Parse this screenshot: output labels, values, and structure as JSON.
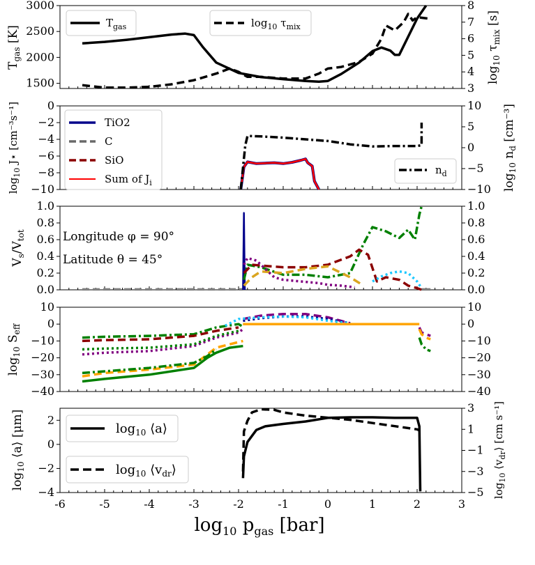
{
  "chart_data": [
    {
      "type": "line",
      "panel": "tgas-mixing",
      "ylabel_left": "Tgas [K]",
      "ylabel_right": "log10 τmix [s]",
      "ylim_left": [
        1400,
        3000
      ],
      "ylim_right": [
        3,
        8
      ],
      "yticks_left": [
        "1500",
        "2000",
        "2500",
        "3000"
      ],
      "yticks_right": [
        "3",
        "4",
        "5",
        "6",
        "7",
        "8"
      ],
      "legend": [
        {
          "label": "Tgas",
          "style": "solid",
          "placement": "top-left"
        },
        {
          "label": "log10 τmix",
          "style": "dashed",
          "placement": "top-center"
        }
      ],
      "series": [
        {
          "name": "Tgas",
          "axis": "left",
          "style": "solid",
          "color": "#000000",
          "x": [
            -5.5,
            -5.0,
            -4.5,
            -4.0,
            -3.5,
            -3.2,
            -3.0,
            -2.8,
            -2.5,
            -2.0,
            -1.5,
            -1.0,
            -0.5,
            -0.2,
            0.0,
            0.3,
            0.7,
            1.0,
            1.2,
            1.4,
            1.5,
            1.6,
            1.8,
            2.0,
            2.2
          ],
          "values": [
            2270,
            2300,
            2340,
            2390,
            2440,
            2460,
            2430,
            2200,
            1900,
            1700,
            1620,
            1580,
            1545,
            1530,
            1545,
            1680,
            1900,
            2120,
            2190,
            2130,
            2050,
            2050,
            2400,
            2750,
            3000
          ]
        },
        {
          "name": "log10 τmix",
          "axis": "right",
          "style": "dashed",
          "color": "#000000",
          "x": [
            -5.5,
            -5.0,
            -4.5,
            -4.0,
            -3.5,
            -3.0,
            -2.5,
            -2.2,
            -2.0,
            -1.8,
            -1.5,
            -1.0,
            -0.5,
            -0.2,
            0.0,
            0.3,
            0.7,
            1.0,
            1.2,
            1.3,
            1.5,
            1.7,
            1.8,
            1.9,
            2.0,
            2.3
          ],
          "values": [
            3.2,
            3.05,
            3.05,
            3.1,
            3.25,
            3.5,
            3.9,
            4.2,
            4.0,
            3.7,
            3.7,
            3.6,
            3.6,
            3.9,
            4.2,
            4.3,
            4.6,
            5.1,
            6.0,
            6.8,
            6.5,
            7.0,
            7.5,
            7.1,
            7.3,
            7.2
          ]
        }
      ]
    },
    {
      "type": "line",
      "panel": "nucleation",
      "ylabel_left": "log10 J⋆ [cm⁻³s⁻¹]",
      "ylabel_right": "log10 nd [cm⁻³]",
      "ylim_left": [
        -10,
        0
      ],
      "ylim_right": [
        -10,
        10
      ],
      "yticks_left": [
        "−10",
        "−8",
        "−6",
        "−4",
        "−2",
        "0"
      ],
      "yticks_right": [
        "−10",
        "−5",
        "0",
        "5",
        "10"
      ],
      "legend": [
        {
          "label": "TiO2",
          "color": "#00008b",
          "style": "solid"
        },
        {
          "label": "C",
          "color": "#696969",
          "style": "dashed"
        },
        {
          "label": "SiO",
          "color": "#8b0000",
          "style": "dashed"
        },
        {
          "label": "Sum of Ji",
          "color": "#ff0000",
          "style": "solid"
        },
        {
          "label": "nd",
          "color": "#000000",
          "style": "dashdot"
        }
      ],
      "series": [
        {
          "name": "TiO2",
          "axis": "left",
          "color": "#00008b",
          "x": [
            -1.95,
            -1.88,
            -1.8,
            -1.6,
            -1.4,
            -1.2,
            -1.0,
            -0.8,
            -0.6,
            -0.5,
            -0.45,
            -0.35,
            -0.3,
            -0.2
          ],
          "values": [
            -10,
            -7.3,
            -6.7,
            -6.9,
            -6.85,
            -6.8,
            -6.9,
            -6.75,
            -6.5,
            -6.35,
            -6.8,
            -7.2,
            -9,
            -10
          ]
        },
        {
          "name": "Sum of Ji",
          "axis": "left",
          "color": "#ff0000",
          "x": [
            -1.95,
            -1.88,
            -1.8,
            -1.6,
            -1.4,
            -1.2,
            -1.0,
            -0.8,
            -0.6,
            -0.5,
            -0.45,
            -0.35,
            -0.3,
            -0.2
          ],
          "values": [
            -10,
            -7.3,
            -6.7,
            -6.9,
            -6.85,
            -6.8,
            -6.9,
            -6.75,
            -6.5,
            -6.35,
            -6.8,
            -7.2,
            -9,
            -10
          ]
        },
        {
          "name": "nd",
          "axis": "right",
          "color": "#000000",
          "style": "dashdot",
          "x": [
            -1.95,
            -1.85,
            -1.8,
            -1.5,
            -1.0,
            -0.5,
            0.0,
            0.5,
            1.0,
            1.5,
            2.0,
            2.1,
            2.1
          ],
          "values": [
            -10,
            0.5,
            2.8,
            2.7,
            2.4,
            2.0,
            1.6,
            0.8,
            0.3,
            0.4,
            0.4,
            0.6,
            6
          ]
        }
      ]
    },
    {
      "type": "line",
      "panel": "volume-fractions",
      "ylabel_left": "Vs/Vtot",
      "ylim": [
        0,
        1.0
      ],
      "yticks": [
        "0.0",
        "0.2",
        "0.4",
        "0.6",
        "0.8",
        "1.0"
      ],
      "annotations": [
        "Longitude φ = 90°",
        "Latitude θ = 45°"
      ],
      "series": [
        {
          "name": "TiO2 spike",
          "color": "#00008b",
          "style": "solid",
          "x": [
            -1.9,
            -1.88,
            -1.86
          ],
          "values": [
            0,
            0.92,
            0
          ]
        },
        {
          "name": "green dashdot",
          "color": "#008000",
          "style": "dashdot",
          "x": [
            -1.88,
            -1.8,
            -1.5,
            -1.0,
            -0.5,
            0.0,
            0.5,
            0.8,
            1.0,
            1.3,
            1.6,
            1.8,
            1.95,
            2.05,
            2.1
          ],
          "values": [
            0.12,
            0.3,
            0.27,
            0.18,
            0.18,
            0.15,
            0.2,
            0.55,
            0.75,
            0.7,
            0.62,
            0.72,
            0.6,
            0.9,
            1.0
          ]
        },
        {
          "name": "darkred dashed",
          "color": "#8b0000",
          "style": "dashed",
          "x": [
            -1.88,
            -1.7,
            -1.5,
            -1.0,
            -0.5,
            0.0,
            0.5,
            0.7,
            0.9,
            1.1,
            1.3,
            1.6,
            1.8,
            2.0,
            2.1
          ],
          "values": [
            0.2,
            0.3,
            0.29,
            0.27,
            0.27,
            0.3,
            0.4,
            0.48,
            0.42,
            0.1,
            0.15,
            0.12,
            0.05,
            0.02,
            0.0
          ]
        },
        {
          "name": "orange dashed",
          "color": "#daa520",
          "style": "dashed",
          "x": [
            -1.88,
            -1.7,
            -1.5,
            -1.0,
            -0.5,
            0.0,
            0.5,
            0.8
          ],
          "values": [
            0.05,
            0.15,
            0.22,
            0.2,
            0.25,
            0.28,
            0.15,
            0.05
          ]
        },
        {
          "name": "purple dotted",
          "color": "#800080",
          "style": "dotted",
          "x": [
            -1.88,
            -1.8,
            -1.6,
            -1.4,
            -1.2,
            -1.0,
            -0.6,
            -0.2,
            0.0,
            0.3,
            0.6
          ],
          "values": [
            0.3,
            0.38,
            0.35,
            0.25,
            0.15,
            0.12,
            0.1,
            0.08,
            0.06,
            0.05,
            0.03
          ]
        },
        {
          "name": "cyan dotted",
          "color": "#1ec8ff",
          "style": "dotted",
          "x": [
            1.0,
            1.2,
            1.4,
            1.6,
            1.8,
            2.0,
            2.1
          ],
          "values": [
            0.1,
            0.16,
            0.2,
            0.22,
            0.2,
            0.1,
            0.02
          ]
        }
      ]
    },
    {
      "type": "line",
      "panel": "supersaturation",
      "ylabel_left": "log10 Seff",
      "ylim": [
        -40,
        10
      ],
      "yticks": [
        "−40",
        "−30",
        "−20",
        "−10",
        "0",
        "10"
      ],
      "series": [
        {
          "name": "green solid",
          "color": "#008000",
          "style": "solid",
          "x": [
            -5.5,
            -5.0,
            -4.0,
            -3.0,
            -2.7,
            -2.5,
            -2.2,
            -1.9
          ],
          "values": [
            -34,
            -32.5,
            -30,
            -26,
            -20,
            -17,
            -14,
            -13
          ]
        },
        {
          "name": "orange dashed low",
          "color": "#ffa500",
          "style": "dashed",
          "x": [
            -5.5,
            -5.0,
            -4.0,
            -3.0,
            -2.7,
            -2.5,
            -2.2,
            -1.9
          ],
          "values": [
            -31,
            -29,
            -27,
            -24,
            -18,
            -14,
            -12,
            -10
          ]
        },
        {
          "name": "green dashdot low",
          "color": "#008000",
          "style": "dashdot",
          "x": [
            -5.5,
            -5.0,
            -4.0,
            -3.0,
            -2.7,
            -2.5
          ],
          "values": [
            -29,
            -28,
            -26,
            -23,
            -19,
            -15
          ]
        },
        {
          "name": "purple dotted",
          "color": "#800080",
          "style": "dotted",
          "x": [
            -5.5,
            -5.0,
            -4.0,
            -3.0,
            -2.5,
            -2.0,
            -1.9
          ],
          "values": [
            -18,
            -17,
            -16,
            -13,
            -8,
            -5,
            -3
          ]
        },
        {
          "name": "green dotted",
          "color": "#008000",
          "style": "dotted",
          "x": [
            -5.5,
            -5.0,
            -4.0,
            -3.0,
            -2.5,
            -2.0
          ],
          "values": [
            -15,
            -14.5,
            -14,
            -12,
            -7,
            -4
          ]
        },
        {
          "name": "green dashdot high",
          "color": "#008000",
          "style": "dashdot",
          "x": [
            -5.5,
            -5.0,
            -4.0,
            -3.0,
            -2.5,
            -2.0,
            -1.88
          ],
          "values": [
            -8,
            -7.5,
            -7,
            -6,
            -2,
            0,
            -2
          ]
        },
        {
          "name": "darkred dashed",
          "color": "#8b0000",
          "style": "dashed",
          "x": [
            -5.5,
            -5.0,
            -4.0,
            -3.0,
            -2.5,
            -2.0
          ],
          "values": [
            -10,
            -9.5,
            -9,
            -7,
            -4,
            -2
          ]
        },
        {
          "name": "purple dashed",
          "color": "#800080",
          "style": "dashed",
          "x": [
            -1.9,
            -1.5,
            -1.0,
            -0.5,
            0.0,
            0.5
          ],
          "values": [
            3,
            5,
            6,
            6,
            4,
            0.5
          ]
        },
        {
          "name": "blue dotted",
          "color": "#00008b",
          "style": "dotted",
          "x": [
            -1.9,
            -1.5,
            -1.0,
            -0.5,
            0.0,
            0.5
          ],
          "values": [
            2,
            3.5,
            4.5,
            4.5,
            3,
            0.5
          ]
        },
        {
          "name": "cyan dotted",
          "color": "#1ec8ff",
          "style": "dotted",
          "x": [
            -2.3,
            -2.0,
            -1.5,
            -1.0,
            -0.5,
            0.0,
            0.5
          ],
          "values": [
            -1,
            3,
            4,
            4.5,
            4,
            2,
            0.5
          ]
        },
        {
          "name": "orange flat",
          "color": "#ffa500",
          "style": "dashed",
          "x": [
            -1.9,
            -1.0,
            0.0,
            1.0,
            2.0,
            2.05
          ],
          "values": [
            0,
            0,
            0,
            0,
            0,
            0
          ]
        },
        {
          "name": "orange flat solid",
          "color": "#ffa500",
          "style": "solid",
          "x": [
            -1.9,
            -1.0,
            0.0,
            1.0,
            2.0,
            2.05
          ],
          "values": [
            0,
            0,
            0,
            0,
            0,
            0
          ]
        },
        {
          "name": "tail green",
          "color": "#008000",
          "style": "dashdot",
          "x": [
            2.05,
            2.1,
            2.2,
            2.3
          ],
          "values": [
            -8,
            -12,
            -15,
            -16
          ]
        },
        {
          "name": "tail purple",
          "color": "#800080",
          "style": "dashed",
          "x": [
            2.05,
            2.1,
            2.2,
            2.3
          ],
          "values": [
            -2,
            -5,
            -6,
            -7
          ]
        },
        {
          "name": "tail orange",
          "color": "#ffa500",
          "style": "dashed",
          "x": [
            2.05,
            2.1,
            2.2,
            2.3
          ],
          "values": [
            -3,
            -6,
            -8,
            -9
          ]
        }
      ]
    },
    {
      "type": "line",
      "panel": "grain-size",
      "ylabel_left": "log10 ⟨a⟩ [μm]",
      "ylabel_right": "log10 ⟨vdr⟩ [cm s⁻¹]",
      "ylim_left": [
        -4,
        3
      ],
      "ylim_right": [
        -5,
        3
      ],
      "yticks_left": [
        "−4",
        "−2",
        "0",
        "2"
      ],
      "yticks_right": [
        "−5",
        "−3",
        "−1",
        "1",
        "3"
      ],
      "xlabel": "log10 pgas [bar]",
      "xlim": [
        -6,
        3
      ],
      "xticks": [
        "-6",
        "-5",
        "-4",
        "-3",
        "-2",
        "-1",
        "0",
        "1",
        "2",
        "3"
      ],
      "legend": [
        {
          "label": "log10 ⟨a⟩",
          "style": "solid"
        },
        {
          "label": "log10 ⟨vdr⟩",
          "style": "dashed"
        }
      ],
      "series": [
        {
          "name": "log10 ⟨a⟩",
          "axis": "left",
          "style": "solid",
          "color": "#000000",
          "x": [
            -1.9,
            -1.88,
            -1.8,
            -1.6,
            -1.4,
            -1.0,
            -0.5,
            0.0,
            0.5,
            1.0,
            1.5,
            2.0,
            2.05,
            2.07
          ],
          "values": [
            -2.8,
            -1.0,
            0.2,
            1.2,
            1.5,
            1.7,
            1.9,
            2.2,
            2.25,
            2.25,
            2.2,
            2.2,
            1.5,
            -3.9
          ]
        },
        {
          "name": "log10 ⟨vdr⟩",
          "axis": "right",
          "style": "dashed",
          "color": "#000000",
          "x": [
            -1.9,
            -1.88,
            -1.8,
            -1.7,
            -1.5,
            -1.2,
            -1.0,
            -0.5,
            0.0,
            0.5,
            1.0,
            1.5,
            2.0,
            2.05
          ],
          "values": [
            -3.0,
            0.8,
            1.8,
            2.6,
            2.9,
            2.85,
            2.6,
            2.3,
            2.1,
            1.9,
            1.6,
            1.3,
            1.0,
            0.9
          ]
        }
      ]
    }
  ]
}
